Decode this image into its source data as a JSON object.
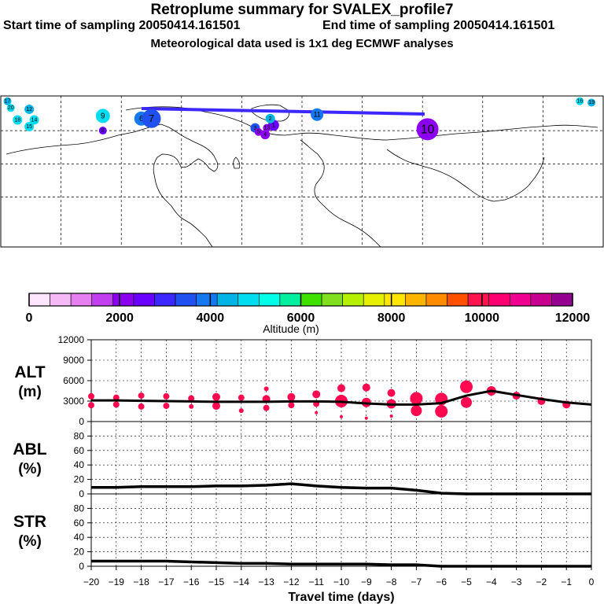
{
  "header": {
    "title": "Retroplume summary for SVALEX_profile7",
    "start_label": "Start time of sampling 20050414.161501",
    "end_label": "End time of sampling 20050414.161501",
    "met_label": "Meteorological data used is 1x1 deg ECMWF analyses"
  },
  "colorbar": {
    "colors": [
      "#ffe6ff",
      "#f5b9f5",
      "#e680f0",
      "#c040f0",
      "#8c00f0",
      "#6a00ff",
      "#3c28ff",
      "#2050f0",
      "#1478f0",
      "#00b4e6",
      "#00dcf0",
      "#00ffe6",
      "#00f0a0",
      "#40e000",
      "#80e020",
      "#b4f000",
      "#e6f000",
      "#ffe600",
      "#ffb400",
      "#ff8c00",
      "#ff5000",
      "#ff1450",
      "#ff0070",
      "#f00090",
      "#c80090",
      "#960090"
    ],
    "tick_labels": [
      "0",
      "2000",
      "4000",
      "6000",
      "8000",
      "10000",
      "12000"
    ],
    "label": "Altitude (m)"
  },
  "map": {
    "clusters": [
      {
        "label": "1",
        "lon": -17,
        "lat": 63,
        "color": "#6a00ff",
        "r": 7
      },
      {
        "label": "2",
        "lon": -19,
        "lat": 68,
        "color": "#00b4e6",
        "r": 6
      },
      {
        "label": "3",
        "lon": -28,
        "lat": 61,
        "color": "#2050f0",
        "r": 6
      },
      {
        "label": "4",
        "lon": -22,
        "lat": 56,
        "color": "#8c00f0",
        "r": 6
      },
      {
        "label": "5",
        "lon": -26,
        "lat": 58,
        "color": "#8c00f0",
        "r": 5
      },
      {
        "label": "6",
        "lon": -96,
        "lat": 68,
        "color": "#1478f0",
        "r": 9
      },
      {
        "label": "7",
        "lon": -90,
        "lat": 68,
        "color": "#2050f0",
        "r": 12
      },
      {
        "label": "8",
        "lon": -119,
        "lat": 59,
        "color": "#6a00ff",
        "r": 5
      },
      {
        "label": "9",
        "lon": -119,
        "lat": 70,
        "color": "#00dcf0",
        "r": 9
      },
      {
        "label": "10",
        "lon": 75,
        "lat": 60,
        "color": "#8c00f0",
        "r": 14
      },
      {
        "label": "11",
        "lon": 9,
        "lat": 71,
        "color": "#1478f0",
        "r": 8
      },
      {
        "label": "12",
        "lon": -163,
        "lat": 75,
        "color": "#00b4e6",
        "r": 6
      },
      {
        "label": "13",
        "lon": -21,
        "lat": 61,
        "color": "#8c00f0",
        "r": 5
      },
      {
        "label": "14",
        "lon": -160,
        "lat": 67,
        "color": "#00dcf0",
        "r": 6
      },
      {
        "label": "15",
        "lon": -163,
        "lat": 62,
        "color": "#00dcf0",
        "r": 6
      },
      {
        "label": "16",
        "lon": 166,
        "lat": 81,
        "color": "#00dcf0",
        "r": 5
      },
      {
        "label": "17",
        "lon": -176,
        "lat": 81,
        "color": "#00b4e6",
        "r": 5
      },
      {
        "label": "18",
        "lon": -170,
        "lat": 67,
        "color": "#00dcf0",
        "r": 6
      },
      {
        "label": "19",
        "lon": 173,
        "lat": 80,
        "color": "#00b4e6",
        "r": 5
      },
      {
        "label": "20",
        "lon": -174,
        "lat": 76,
        "color": "#00dcf0",
        "r": 5
      }
    ]
  },
  "chart_data": [
    {
      "type": "scatter",
      "panel": "ALT",
      "title": "ALT (m)",
      "ylabel_line1": "ALT",
      "ylabel_line2": "(m)",
      "ylim": [
        0,
        12000
      ],
      "yticks": [
        0,
        3000,
        6000,
        9000,
        12000
      ],
      "x": [
        -20,
        -19,
        -18,
        -17,
        -16,
        -15,
        -14,
        -13,
        -12,
        -11,
        -10,
        -9,
        -8,
        -7,
        -6,
        -5,
        -4,
        -3,
        -2,
        -1,
        0
      ],
      "mean_altitude": [
        3100,
        3100,
        3050,
        3000,
        2950,
        2900,
        2900,
        2900,
        2950,
        2950,
        2900,
        2650,
        2500,
        2500,
        2700,
        3800,
        4500,
        3900,
        3300,
        2800,
        2500
      ],
      "points": [
        {
          "x": -20,
          "y": 3700,
          "s": 4
        },
        {
          "x": -20,
          "y": 2400,
          "s": 4
        },
        {
          "x": -19,
          "y": 3500,
          "s": 4
        },
        {
          "x": -19,
          "y": 2500,
          "s": 4
        },
        {
          "x": -18,
          "y": 3800,
          "s": 4
        },
        {
          "x": -18,
          "y": 2200,
          "s": 4
        },
        {
          "x": -17,
          "y": 3700,
          "s": 4
        },
        {
          "x": -17,
          "y": 2300,
          "s": 4
        },
        {
          "x": -16,
          "y": 3400,
          "s": 4
        },
        {
          "x": -16,
          "y": 2200,
          "s": 3
        },
        {
          "x": -15,
          "y": 3600,
          "s": 5
        },
        {
          "x": -15,
          "y": 2300,
          "s": 5
        },
        {
          "x": -14,
          "y": 3500,
          "s": 4
        },
        {
          "x": -14,
          "y": 1600,
          "s": 3
        },
        {
          "x": -13,
          "y": 4800,
          "s": 3
        },
        {
          "x": -13,
          "y": 3300,
          "s": 5
        },
        {
          "x": -13,
          "y": 2000,
          "s": 4
        },
        {
          "x": -12,
          "y": 3600,
          "s": 5
        },
        {
          "x": -12,
          "y": 2400,
          "s": 4
        },
        {
          "x": -11,
          "y": 4000,
          "s": 5
        },
        {
          "x": -11,
          "y": 2600,
          "s": 4
        },
        {
          "x": -11,
          "y": 1300,
          "s": 2
        },
        {
          "x": -10,
          "y": 4900,
          "s": 5
        },
        {
          "x": -10,
          "y": 3000,
          "s": 8
        },
        {
          "x": -10,
          "y": 700,
          "s": 2
        },
        {
          "x": -9,
          "y": 5000,
          "s": 5
        },
        {
          "x": -9,
          "y": 2800,
          "s": 6
        },
        {
          "x": -9,
          "y": 500,
          "s": 2
        },
        {
          "x": -8,
          "y": 4200,
          "s": 5
        },
        {
          "x": -8,
          "y": 2600,
          "s": 6
        },
        {
          "x": -8,
          "y": 800,
          "s": 2
        },
        {
          "x": -7,
          "y": 3400,
          "s": 8
        },
        {
          "x": -7,
          "y": 1600,
          "s": 7
        },
        {
          "x": -6,
          "y": 3300,
          "s": 8
        },
        {
          "x": -6,
          "y": 1500,
          "s": 8
        },
        {
          "x": -5,
          "y": 5100,
          "s": 8
        },
        {
          "x": -5,
          "y": 2800,
          "s": 7
        },
        {
          "x": -4,
          "y": 4500,
          "s": 6
        },
        {
          "x": -3,
          "y": 3800,
          "s": 5
        },
        {
          "x": -2,
          "y": 3000,
          "s": 5
        },
        {
          "x": -1,
          "y": 2500,
          "s": 5
        }
      ]
    },
    {
      "type": "line",
      "panel": "ABL",
      "ylabel_line1": "ABL",
      "ylabel_line2": "(%)",
      "ylim": [
        0,
        100
      ],
      "yticks": [
        0,
        20,
        40,
        60,
        80
      ],
      "x": [
        -20,
        -19,
        -18,
        -17,
        -16,
        -15,
        -14,
        -13,
        -12,
        -11,
        -10,
        -9,
        -8,
        -7,
        -6,
        -5,
        -4,
        -3,
        -2,
        -1,
        0
      ],
      "values": [
        9,
        9,
        10,
        10,
        10,
        11,
        11,
        12,
        14,
        11,
        9,
        8,
        8,
        5,
        1,
        0,
        0,
        0,
        0,
        0,
        0
      ]
    },
    {
      "type": "line",
      "panel": "STR",
      "ylabel_line1": "STR",
      "ylabel_line2": "(%)",
      "ylim": [
        0,
        100
      ],
      "yticks": [
        0,
        20,
        40,
        60,
        80
      ],
      "x": [
        -20,
        -19,
        -18,
        -17,
        -16,
        -15,
        -14,
        -13,
        -12,
        -11,
        -10,
        -9,
        -8,
        -7,
        -6,
        -5,
        -4,
        -3,
        -2,
        -1,
        0
      ],
      "values": [
        7,
        7,
        7,
        7,
        6,
        5,
        4,
        4,
        3,
        3,
        3,
        3,
        2,
        2,
        0,
        0,
        0,
        0,
        0,
        0,
        0
      ]
    }
  ],
  "axes": {
    "xticks": [
      -20,
      -19,
      -18,
      -17,
      -16,
      -15,
      -14,
      -13,
      -12,
      -11,
      -10,
      -9,
      -8,
      -7,
      -6,
      -5,
      -4,
      -3,
      -2,
      -1,
      0
    ],
    "xlabel": "Travel time (days)"
  }
}
